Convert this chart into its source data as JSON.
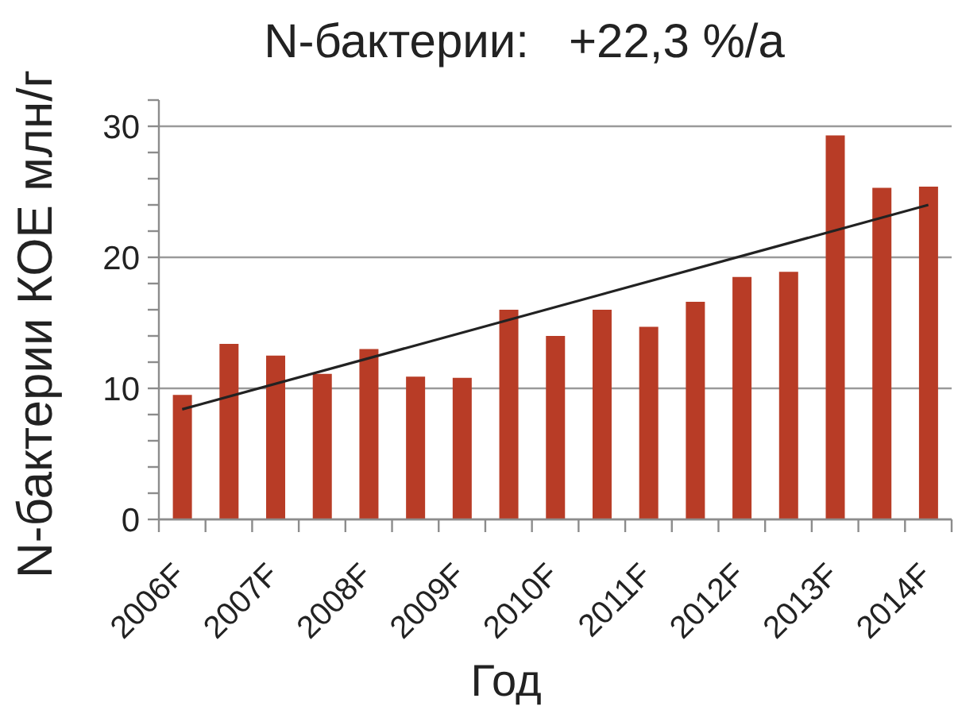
{
  "chart_data": {
    "type": "bar",
    "title": "N-бактерии:   +22,3 %/a",
    "xlabel": "Год",
    "ylabel": "N-бактерии КОЕ млн/г",
    "categories": [
      "2006F",
      null,
      "2007F",
      null,
      "2008F",
      null,
      "2009F",
      null,
      "2010F",
      null,
      "2011F",
      null,
      "2012F",
      null,
      "2013F",
      null,
      "2014F"
    ],
    "series": [
      {
        "color": "#b83c26",
        "values": [
          9.5,
          13.4,
          12.5,
          11.1,
          13.0,
          10.9,
          10.8,
          16.0,
          14.0,
          16.0,
          14.7,
          16.6,
          18.5,
          18.9,
          29.3,
          25.3,
          25.4
        ]
      },
      {
        "type": "line",
        "color": "#222222",
        "x": [
          "2006F",
          "2014F"
        ],
        "values": [
          8.4,
          24.0
        ]
      }
    ],
    "ylim": [
      0,
      32
    ],
    "yticks": [
      0,
      {
        "value": 2,
        "label": null
      },
      {
        "value": 4,
        "label": null
      },
      {
        "value": 6,
        "label": null
      },
      {
        "value": 8,
        "label": null
      },
      10,
      {
        "value": 12,
        "label": null
      },
      {
        "value": 14,
        "label": null
      },
      {
        "value": 16,
        "label": null
      },
      {
        "value": 18,
        "label": null
      },
      20,
      {
        "value": 22,
        "label": null
      },
      {
        "value": 24,
        "label": null
      },
      {
        "value": 26,
        "label": null
      },
      {
        "value": 28,
        "label": null
      },
      30,
      {
        "value": 32,
        "label": null
      }
    ],
    "grid": "y"
  }
}
